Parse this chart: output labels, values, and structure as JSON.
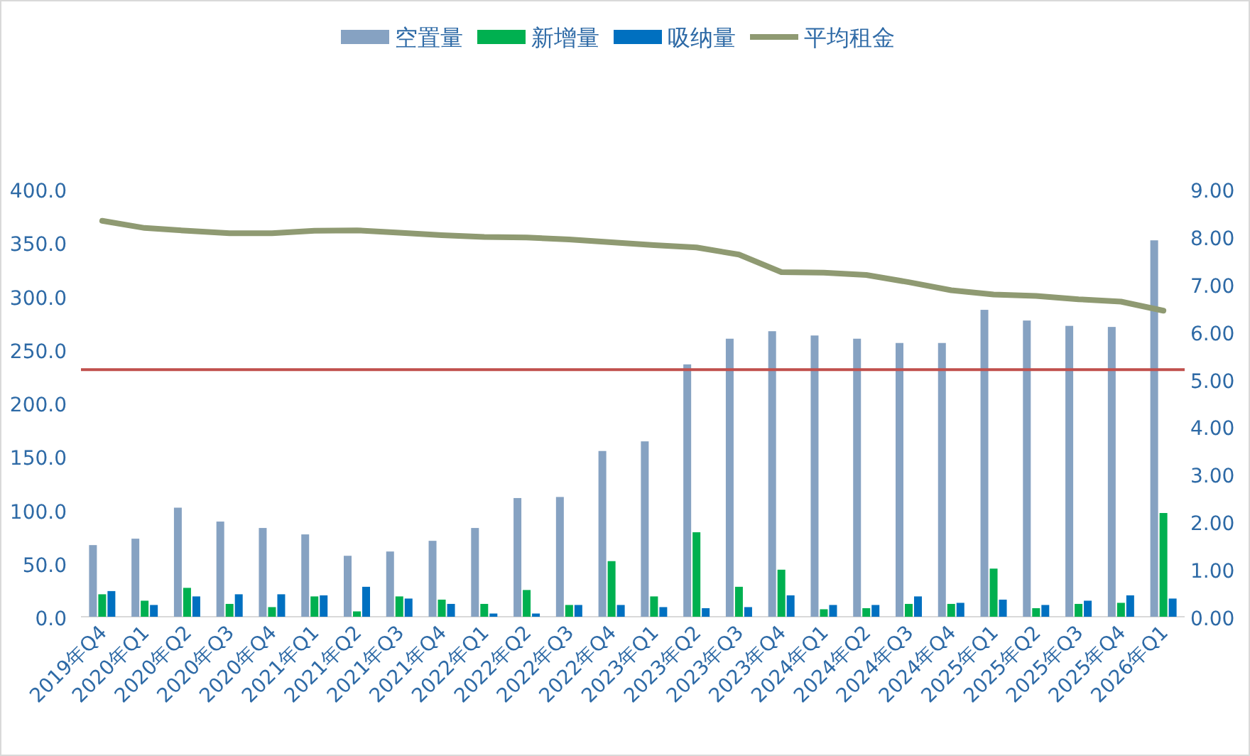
{
  "chart_data": {
    "type": "bar",
    "categories": [
      "2019年Q4",
      "2020年Q1",
      "2020年Q2",
      "2020年Q3",
      "2020年Q4",
      "2021年Q1",
      "2021年Q2",
      "2021年Q3",
      "2021年Q4",
      "2022年Q1",
      "2022年Q2",
      "2022年Q3",
      "2022年Q4",
      "2023年Q1",
      "2023年Q2",
      "2023年Q3",
      "2023年Q4",
      "2024年Q1",
      "2024年Q2",
      "2024年Q3",
      "2024年Q4",
      "2025年Q1",
      "2025年Q2",
      "2025年Q3",
      "2025年Q4",
      "2026年Q1"
    ],
    "series": [
      {
        "name": "空置量",
        "color": "#86a2c2",
        "values": [
          67,
          73,
          102,
          89,
          83,
          77,
          57,
          61,
          71,
          83,
          111,
          112,
          155,
          164,
          236,
          260,
          267,
          263,
          260,
          256,
          256,
          287,
          277,
          272,
          271,
          352
        ]
      },
      {
        "name": "新增量",
        "color": "#00b050",
        "values": [
          21,
          15,
          27,
          12,
          9,
          19,
          5,
          19,
          16,
          12,
          25,
          11,
          52,
          19,
          79,
          28,
          44,
          7,
          8,
          12,
          12,
          45,
          8,
          12,
          13,
          97
        ]
      },
      {
        "name": "吸纳量",
        "color": "#0070c0",
        "values": [
          24,
          11,
          19,
          21,
          21,
          20,
          28,
          17,
          12,
          3,
          3,
          11,
          11,
          9,
          8,
          9,
          20,
          11,
          11,
          19,
          13,
          16,
          11,
          15,
          20,
          17
        ]
      },
      {
        "name": "平均租金",
        "type": "line",
        "axis": "y2",
        "color": "#8f9a72",
        "values": [
          8.33,
          8.18,
          8.12,
          8.07,
          8.07,
          8.12,
          8.13,
          8.08,
          8.03,
          7.99,
          7.98,
          7.94,
          7.88,
          7.82,
          7.77,
          7.62,
          7.25,
          7.24,
          7.19,
          7.04,
          6.87,
          6.78,
          6.75,
          6.68,
          6.63,
          6.44
        ]
      }
    ],
    "ylim": [
      0,
      400
    ],
    "yticks": [
      {
        "value": 0,
        "label": "0.0"
      },
      {
        "value": 50,
        "label": "50.0"
      },
      {
        "value": 100,
        "label": "100.0"
      },
      {
        "value": 150,
        "label": "150.0"
      },
      {
        "value": 200,
        "label": "200.0"
      },
      {
        "value": 250,
        "label": "250.0"
      },
      {
        "value": 300,
        "label": "300.0"
      },
      {
        "value": 350,
        "label": "350.0"
      },
      {
        "value": 400,
        "label": "400.0"
      }
    ],
    "y2lim": [
      0,
      9
    ],
    "y2ticks": [
      {
        "value": 0,
        "label": "0.00"
      },
      {
        "value": 1,
        "label": "1.00"
      },
      {
        "value": 2,
        "label": "2.00"
      },
      {
        "value": 3,
        "label": "3.00"
      },
      {
        "value": 4,
        "label": "4.00"
      },
      {
        "value": 5,
        "label": "5.00"
      },
      {
        "value": 6,
        "label": "6.00"
      },
      {
        "value": 7,
        "label": "7.00"
      },
      {
        "value": 8,
        "label": "8.00"
      },
      {
        "value": 9,
        "label": "9.00"
      }
    ],
    "ref_lines": [
      {
        "axis": "y",
        "value": 231,
        "color": "#c0504d"
      }
    ],
    "legend": "top",
    "grid": false
  }
}
